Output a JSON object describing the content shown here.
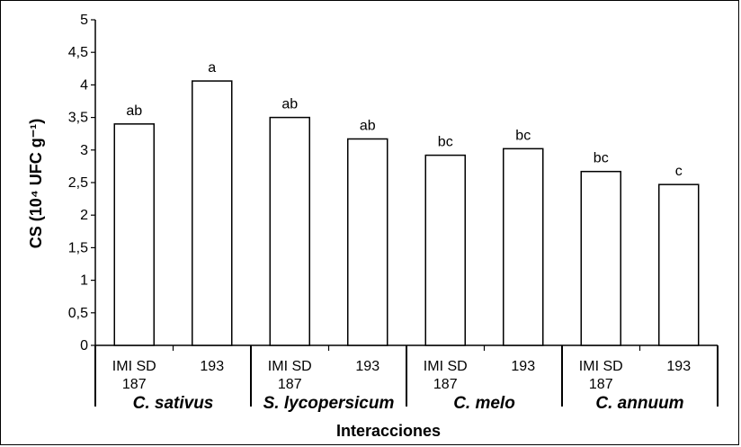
{
  "chart_data": {
    "type": "bar",
    "ylabel": "CS (10⁴ UFC g⁻¹)",
    "xlabel": "Interacciones",
    "ylim": [
      0,
      5
    ],
    "yticks": [
      "0",
      "0,5",
      "1",
      "1,5",
      "2",
      "2,5",
      "3",
      "3,5",
      "4",
      "4,5",
      "5"
    ],
    "grid": false,
    "groups": [
      {
        "name": "C. sativus",
        "bars": [
          {
            "category": [
              "IMI SD",
              "187"
            ],
            "value": 3.4,
            "letter": "ab"
          },
          {
            "category": [
              "193"
            ],
            "value": 4.06,
            "letter": "a"
          }
        ]
      },
      {
        "name": "S. lycopersicum",
        "bars": [
          {
            "category": [
              "IMI SD",
              "187"
            ],
            "value": 3.5,
            "letter": "ab"
          },
          {
            "category": [
              "193"
            ],
            "value": 3.17,
            "letter": "ab"
          }
        ]
      },
      {
        "name": "C. melo",
        "bars": [
          {
            "category": [
              "IMI SD",
              "187"
            ],
            "value": 2.92,
            "letter": "bc"
          },
          {
            "category": [
              "193"
            ],
            "value": 3.02,
            "letter": "bc"
          }
        ]
      },
      {
        "name": "C. annuum",
        "bars": [
          {
            "category": [
              "IMI SD",
              "187"
            ],
            "value": 2.67,
            "letter": "bc"
          },
          {
            "category": [
              "193"
            ],
            "value": 2.47,
            "letter": "c"
          }
        ]
      }
    ]
  }
}
